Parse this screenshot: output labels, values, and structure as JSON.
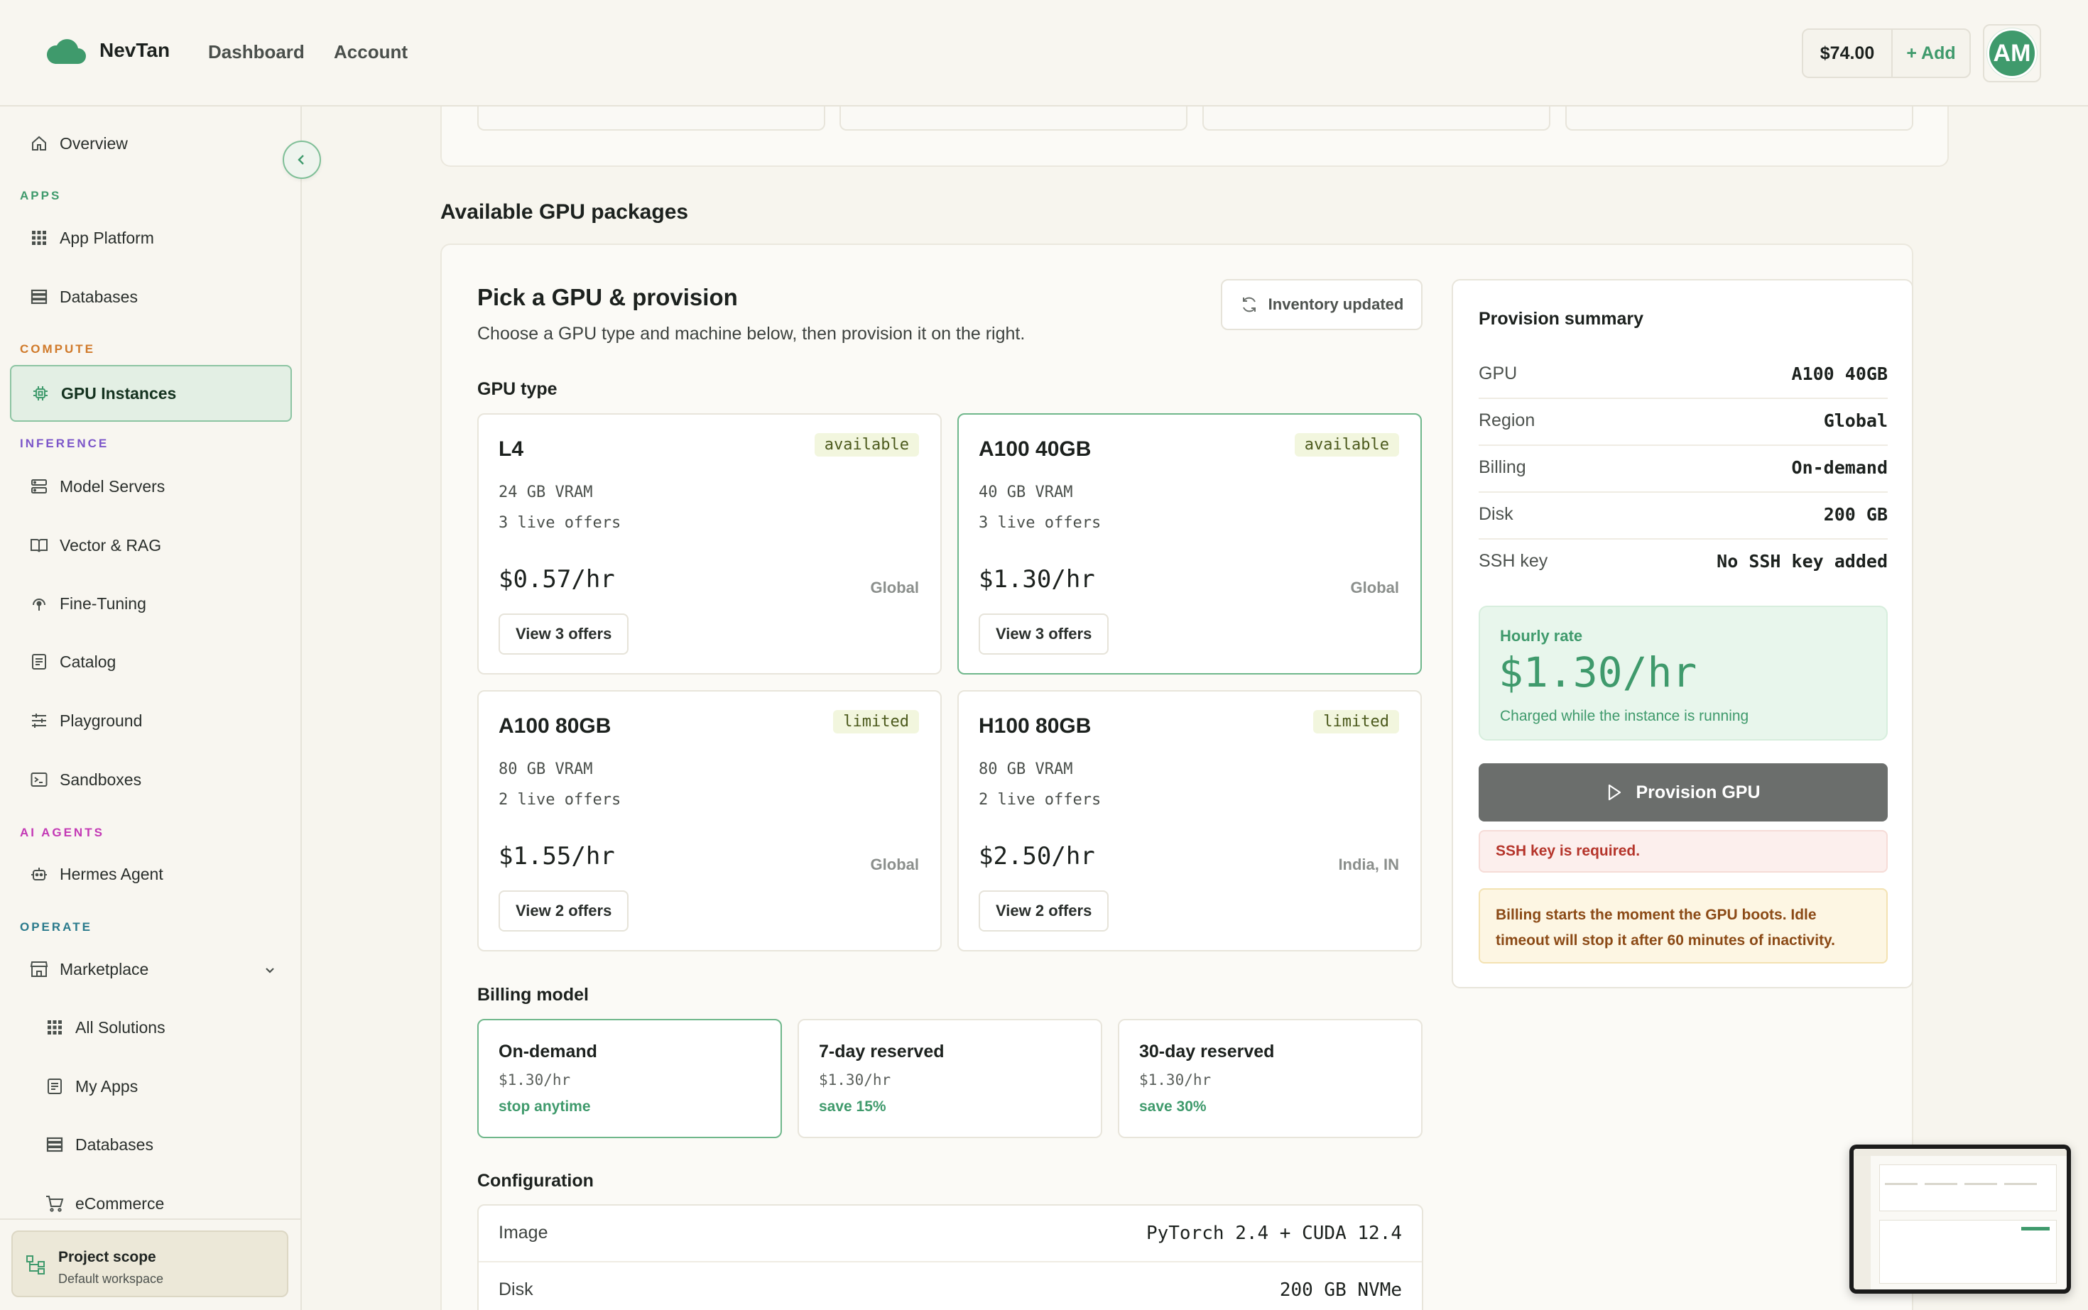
{
  "brand": {
    "name": "NevTan"
  },
  "topnav": {
    "dashboard": "Dashboard",
    "account": "Account"
  },
  "balance": {
    "amount": "$74.00",
    "add": "+ Add"
  },
  "user": {
    "initials": "AM"
  },
  "sidebar": {
    "overview": "Overview",
    "sections": {
      "apps": "APPS",
      "compute": "COMPUTE",
      "inference": "INFERENCE",
      "ai_agents": "AI AGENTS",
      "operate": "OPERATE"
    },
    "section_colors": {
      "apps": "#3f9a6c",
      "compute": "#d07a2a",
      "inference": "#7c56c9",
      "ai_agents": "#c339b5",
      "operate": "#2a7a8c"
    },
    "items": {
      "app_platform": "App Platform",
      "databases": "Databases",
      "gpu_instances": "GPU Instances",
      "model_servers": "Model Servers",
      "vector_rag": "Vector & RAG",
      "fine_tuning": "Fine-Tuning",
      "catalog": "Catalog",
      "playground": "Playground",
      "sandboxes": "Sandboxes",
      "hermes_agent": "Hermes Agent",
      "marketplace": "Marketplace",
      "all_solutions": "All Solutions",
      "my_apps": "My Apps",
      "databases_sub": "Databases",
      "ecommerce": "eCommerce"
    },
    "scope": {
      "title": "Project scope",
      "subtitle": "Default workspace"
    }
  },
  "main": {
    "section_heading": "Available GPU packages",
    "pick_title": "Pick a GPU & provision",
    "pick_subtitle": "Choose a GPU type and machine below, then provision it on the right.",
    "inventory_button": "Inventory updated",
    "gpu_type_label": "GPU type",
    "gpus": [
      {
        "name": "L4",
        "badge": "available",
        "vram": "24 GB VRAM",
        "offers": "3 live offers",
        "price": "$0.57/hr",
        "region": "Global",
        "view": "View 3 offers"
      },
      {
        "name": "A100 40GB",
        "badge": "available",
        "vram": "40 GB VRAM",
        "offers": "3 live offers",
        "price": "$1.30/hr",
        "region": "Global",
        "view": "View 3 offers"
      },
      {
        "name": "A100 80GB",
        "badge": "limited",
        "vram": "80 GB VRAM",
        "offers": "2 live offers",
        "price": "$1.55/hr",
        "region": "Global",
        "view": "View 2 offers"
      },
      {
        "name": "H100 80GB",
        "badge": "limited",
        "vram": "80 GB VRAM",
        "offers": "2 live offers",
        "price": "$2.50/hr",
        "region": "India, IN",
        "view": "View 2 offers"
      }
    ],
    "billing_label": "Billing model",
    "billing": [
      {
        "title": "On-demand",
        "price": "$1.30/hr",
        "note": "stop anytime"
      },
      {
        "title": "7-day reserved",
        "price": "$1.30/hr",
        "note": "save 15%"
      },
      {
        "title": "30-day reserved",
        "price": "$1.30/hr",
        "note": "save 30%"
      }
    ],
    "config_label": "Configuration",
    "config": [
      {
        "key": "Image",
        "value": "PyTorch 2.4 + CUDA 12.4"
      },
      {
        "key": "Disk",
        "value": "200 GB NVMe"
      }
    ]
  },
  "summary": {
    "title": "Provision summary",
    "rows": [
      {
        "key": "GPU",
        "value": "A100 40GB"
      },
      {
        "key": "Region",
        "value": "Global"
      },
      {
        "key": "Billing",
        "value": "On-demand"
      },
      {
        "key": "Disk",
        "value": "200 GB"
      },
      {
        "key": "SSH key",
        "value": "No SSH key added"
      }
    ],
    "rate_label": "Hourly rate",
    "rate_value": "$1.30/hr",
    "rate_note": "Charged while the instance is running",
    "provision_button": "Provision GPU",
    "error": "SSH key is required.",
    "warning": "Billing starts the moment the GPU boots. Idle timeout will stop it after 60 minutes of inactivity."
  }
}
